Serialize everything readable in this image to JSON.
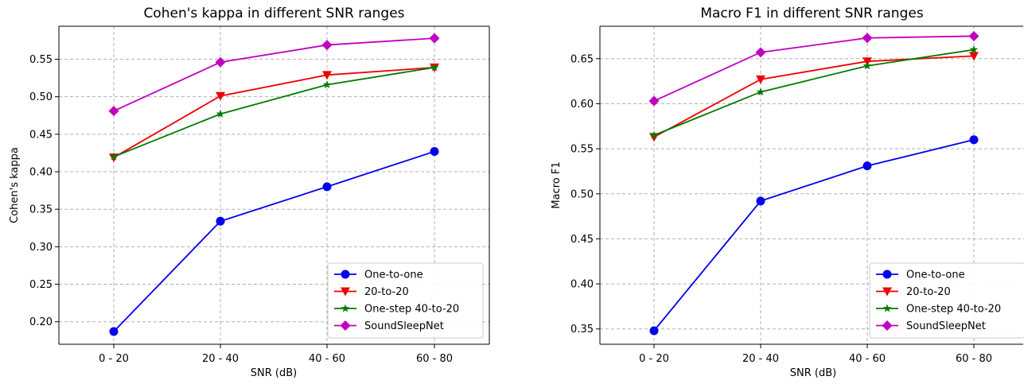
{
  "chart_data": [
    {
      "type": "line",
      "title": "Cohen's kappa in different SNR ranges",
      "xlabel": "SNR (dB)",
      "ylabel": "Cohen's kappa",
      "categories": [
        "0 - 20",
        "20 - 40",
        "40 - 60",
        "60 - 80"
      ],
      "ylim": [
        0.17,
        0.594
      ],
      "yticks": [
        "0.20",
        "0.25",
        "0.30",
        "0.35",
        "0.40",
        "0.45",
        "0.50",
        "0.55"
      ],
      "grid": true,
      "legend_position": "lower-right",
      "series": [
        {
          "name": "One-to-one",
          "color": "#0000ee",
          "marker": "circle",
          "values": [
            0.187,
            0.334,
            0.38,
            0.427
          ]
        },
        {
          "name": "20-to-20",
          "color": "#ee0000",
          "marker": "triangle-down",
          "values": [
            0.419,
            0.501,
            0.529,
            0.539
          ]
        },
        {
          "name": "One-step 40-to-20",
          "color": "#007a00",
          "marker": "star",
          "values": [
            0.42,
            0.477,
            0.516,
            0.539
          ]
        },
        {
          "name": "SoundSleepNet",
          "color": "#c000c0",
          "marker": "diamond",
          "values": [
            0.481,
            0.546,
            0.569,
            0.578
          ]
        }
      ]
    },
    {
      "type": "line",
      "title": "Macro F1 in different SNR ranges",
      "xlabel": "SNR (dB)",
      "ylabel": "Macro F1",
      "categories": [
        "0 - 20",
        "20 - 40",
        "40 - 60",
        "60 - 80"
      ],
      "ylim": [
        0.333,
        0.686
      ],
      "yticks": [
        "0.35",
        "0.40",
        "0.45",
        "0.50",
        "0.55",
        "0.60",
        "0.65"
      ],
      "grid": true,
      "legend_position": "lower-right",
      "series": [
        {
          "name": "One-to-one",
          "color": "#0000ee",
          "marker": "circle",
          "values": [
            0.348,
            0.492,
            0.531,
            0.56
          ]
        },
        {
          "name": "20-to-20",
          "color": "#ee0000",
          "marker": "triangle-down",
          "values": [
            0.563,
            0.627,
            0.647,
            0.653
          ]
        },
        {
          "name": "One-step 40-to-20",
          "color": "#007a00",
          "marker": "star",
          "values": [
            0.565,
            0.613,
            0.642,
            0.66
          ]
        },
        {
          "name": "SoundSleepNet",
          "color": "#c000c0",
          "marker": "diamond",
          "values": [
            0.603,
            0.657,
            0.673,
            0.675
          ]
        }
      ]
    }
  ]
}
